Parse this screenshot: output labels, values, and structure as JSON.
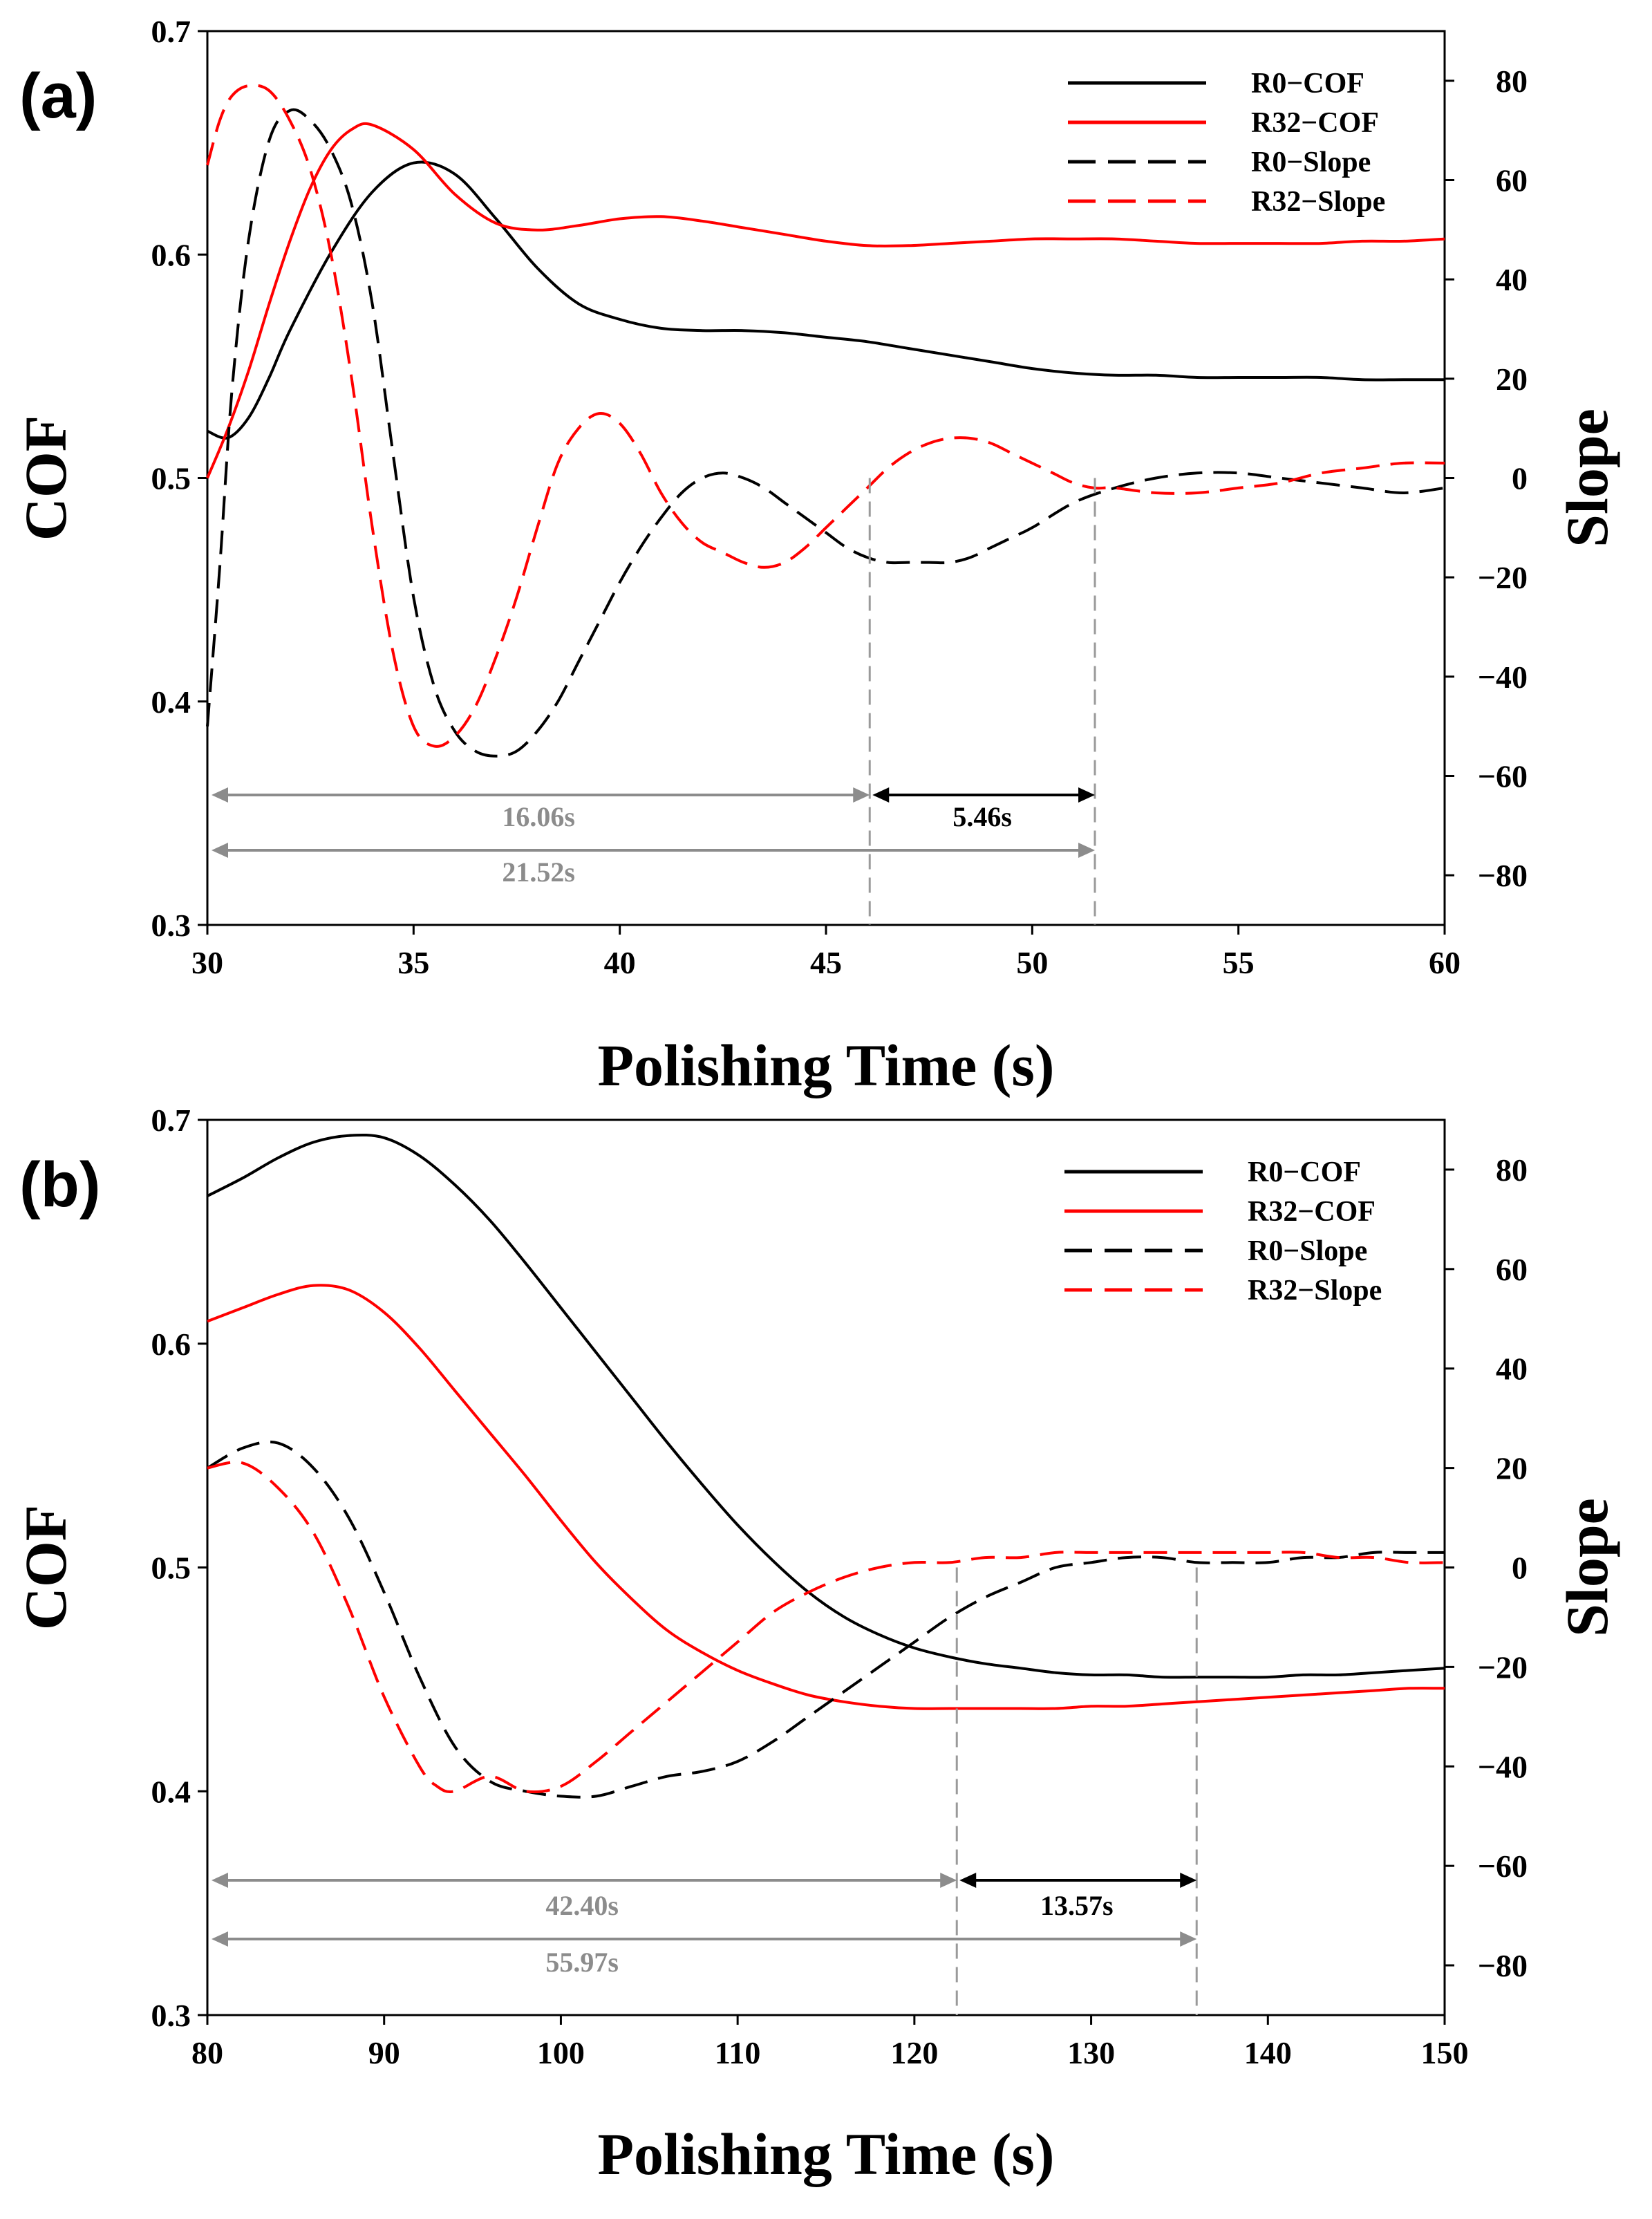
{
  "chart_data": [
    {
      "type": "line",
      "panel_label": "(a)",
      "xlabel": "Polishing Time (s)",
      "ylabel": "COF",
      "y2label": "Slope",
      "xlim": [
        30,
        60
      ],
      "ylim": [
        0.3,
        0.7
      ],
      "y2lim": [
        -90,
        90
      ],
      "xticks": [
        "30",
        "35",
        "40",
        "45",
        "50",
        "55",
        "60"
      ],
      "yticks": [
        "0.3",
        "0.4",
        "0.5",
        "0.6",
        "0.7"
      ],
      "y2ticks": [
        "-80",
        "-60",
        "-40",
        "-20",
        "0",
        "20",
        "40",
        "60",
        "80"
      ],
      "legend": [
        "R0−COF",
        "R32−COF",
        "R0−Slope",
        "R32−Slope"
      ],
      "legend_position": "top-right",
      "colors": {
        "R0": "#000000",
        "R32": "#ff0000",
        "annotation": "#8c8c8c"
      },
      "series": [
        {
          "name": "R0−COF",
          "axis": "left",
          "style": "solid",
          "color": "#000000",
          "x": [
            30,
            30.5,
            31,
            31.5,
            32,
            33,
            34,
            35,
            36,
            37,
            38,
            39,
            40,
            41,
            42,
            43,
            44,
            45,
            46,
            47,
            48,
            49,
            50,
            51,
            52,
            53,
            54,
            55,
            56,
            57,
            58,
            59,
            60
          ],
          "y": [
            0.521,
            0.518,
            0.527,
            0.545,
            0.566,
            0.601,
            0.628,
            0.641,
            0.636,
            0.616,
            0.594,
            0.578,
            0.571,
            0.567,
            0.566,
            0.566,
            0.565,
            0.563,
            0.561,
            0.558,
            0.555,
            0.552,
            0.549,
            0.547,
            0.546,
            0.546,
            0.545,
            0.545,
            0.545,
            0.545,
            0.544,
            0.544,
            0.544
          ]
        },
        {
          "name": "R32−COF",
          "axis": "left",
          "style": "solid",
          "color": "#ff0000",
          "x": [
            30,
            30.5,
            31,
            31.5,
            32,
            32.5,
            33,
            33.5,
            34,
            35,
            36,
            37,
            38,
            39,
            40,
            41,
            42,
            43,
            44,
            45,
            46,
            47,
            48,
            49,
            50,
            51,
            52,
            53,
            54,
            55,
            56,
            57,
            58,
            59,
            60
          ],
          "y": [
            0.5,
            0.522,
            0.548,
            0.578,
            0.606,
            0.63,
            0.647,
            0.656,
            0.658,
            0.647,
            0.627,
            0.614,
            0.611,
            0.613,
            0.616,
            0.617,
            0.615,
            0.612,
            0.609,
            0.606,
            0.604,
            0.604,
            0.605,
            0.606,
            0.607,
            0.607,
            0.607,
            0.606,
            0.605,
            0.605,
            0.605,
            0.605,
            0.606,
            0.606,
            0.607
          ]
        },
        {
          "name": "R0−Slope",
          "axis": "right",
          "style": "dashed",
          "color": "#000000",
          "x": [
            30,
            30.3,
            30.6,
            31,
            31.5,
            32,
            32.5,
            33,
            33.5,
            34,
            34.5,
            35,
            35.5,
            36,
            36.5,
            37,
            37.5,
            38,
            38.5,
            39,
            39.5,
            40,
            40.5,
            41,
            41.5,
            42,
            42.5,
            43,
            43.5,
            44,
            44.5,
            45,
            45.5,
            46,
            46.5,
            47,
            47.5,
            48,
            48.5,
            49,
            49.5,
            50,
            51,
            52,
            53,
            54,
            55,
            56,
            57,
            58,
            59,
            60
          ],
          "y": [
            -50,
            -18,
            18,
            48,
            68,
            74,
            72,
            66,
            55,
            35,
            5,
            -24,
            -42,
            -51,
            -55,
            -56,
            -55,
            -51,
            -45,
            -37,
            -29,
            -21,
            -14,
            -8,
            -3,
            0,
            1,
            0,
            -2,
            -5,
            -8,
            -11,
            -14,
            -16,
            -17,
            -17,
            -17,
            -17,
            -16,
            -14,
            -12,
            -10,
            -5,
            -2,
            0,
            1,
            1,
            0,
            -1,
            -2,
            -3,
            -2
          ]
        },
        {
          "name": "R32−Slope",
          "axis": "right",
          "style": "dashed",
          "color": "#ff0000",
          "x": [
            30,
            30.3,
            30.6,
            31,
            31.5,
            32,
            32.5,
            33,
            33.5,
            34,
            34.5,
            35,
            35.5,
            36,
            36.5,
            37,
            37.5,
            38,
            38.5,
            39,
            39.5,
            40,
            40.5,
            41,
            41.5,
            42,
            42.5,
            43,
            43.5,
            44,
            44.5,
            45,
            45.5,
            46,
            46.5,
            47,
            47.5,
            48,
            48.5,
            49,
            49.5,
            50,
            50.5,
            51,
            51.5,
            52,
            53,
            54,
            55,
            56,
            57,
            58,
            59,
            60
          ],
          "y": [
            63,
            72,
            77,
            79,
            78,
            72,
            62,
            45,
            20,
            -10,
            -35,
            -50,
            -54,
            -52,
            -46,
            -36,
            -24,
            -10,
            3,
            10,
            13,
            11,
            5,
            -3,
            -9,
            -13,
            -15,
            -17,
            -18,
            -17,
            -14,
            -10,
            -6,
            -2,
            2,
            5,
            7,
            8,
            8,
            7,
            5,
            3,
            1,
            -1,
            -2,
            -2,
            -3,
            -3,
            -2,
            -1,
            1,
            2,
            3,
            3
          ]
        }
      ],
      "annotations": [
        {
          "text": "16.06s",
          "from": 30,
          "to": 46.06,
          "color": "gray"
        },
        {
          "text": "5.46s",
          "from": 46.06,
          "to": 51.52,
          "color": "black"
        },
        {
          "text": "21.52s",
          "from": 30,
          "to": 51.52,
          "color": "gray"
        }
      ],
      "vlines": [
        46.06,
        51.52
      ]
    },
    {
      "type": "line",
      "panel_label": "(b)",
      "xlabel": "Polishing Time (s)",
      "ylabel": "COF",
      "y2label": "Slope",
      "xlim": [
        80,
        150
      ],
      "ylim": [
        0.3,
        0.7
      ],
      "y2lim": [
        -90,
        90
      ],
      "xticks": [
        "80",
        "90",
        "100",
        "110",
        "120",
        "130",
        "140",
        "150"
      ],
      "yticks": [
        "0.3",
        "0.4",
        "0.5",
        "0.6",
        "0.7"
      ],
      "y2ticks": [
        "-80",
        "-60",
        "-40",
        "-20",
        "0",
        "20",
        "40",
        "60",
        "80"
      ],
      "legend": [
        "R0−COF",
        "R32−COF",
        "R0−Slope",
        "R32−Slope"
      ],
      "legend_position": "top-right",
      "colors": {
        "R0": "#000000",
        "R32": "#ff0000",
        "annotation": "#8c8c8c"
      },
      "series": [
        {
          "name": "R0−COF",
          "axis": "left",
          "style": "solid",
          "color": "#000000",
          "x": [
            80,
            82,
            84,
            86,
            88,
            90,
            92,
            94,
            96,
            98,
            100,
            102,
            104,
            106,
            108,
            110,
            112,
            114,
            116,
            118,
            120,
            122,
            124,
            126,
            128,
            130,
            132,
            134,
            136,
            138,
            140,
            142,
            144,
            146,
            148,
            150
          ],
          "y": [
            0.666,
            0.674,
            0.683,
            0.69,
            0.693,
            0.692,
            0.684,
            0.671,
            0.655,
            0.636,
            0.616,
            0.596,
            0.576,
            0.556,
            0.537,
            0.519,
            0.503,
            0.489,
            0.478,
            0.47,
            0.464,
            0.46,
            0.457,
            0.455,
            0.453,
            0.452,
            0.452,
            0.451,
            0.451,
            0.451,
            0.451,
            0.452,
            0.452,
            0.453,
            0.454,
            0.455
          ]
        },
        {
          "name": "R32−COF",
          "axis": "left",
          "style": "solid",
          "color": "#ff0000",
          "x": [
            80,
            82,
            84,
            86,
            88,
            90,
            92,
            94,
            96,
            98,
            100,
            102,
            104,
            106,
            108,
            110,
            112,
            114,
            116,
            118,
            120,
            122,
            124,
            126,
            128,
            130,
            132,
            134,
            136,
            138,
            140,
            142,
            144,
            146,
            148,
            150
          ],
          "y": [
            0.61,
            0.616,
            0.622,
            0.626,
            0.624,
            0.614,
            0.598,
            0.579,
            0.56,
            0.541,
            0.521,
            0.502,
            0.486,
            0.472,
            0.462,
            0.454,
            0.448,
            0.443,
            0.44,
            0.438,
            0.437,
            0.437,
            0.437,
            0.437,
            0.437,
            0.438,
            0.438,
            0.439,
            0.44,
            0.441,
            0.442,
            0.443,
            0.444,
            0.445,
            0.446,
            0.446
          ]
        },
        {
          "name": "R0−Slope",
          "axis": "right",
          "style": "dashed",
          "color": "#000000",
          "x": [
            80,
            82,
            84,
            86,
            88,
            90,
            92,
            94,
            96,
            98,
            100,
            102,
            104,
            106,
            108,
            110,
            112,
            114,
            116,
            118,
            120,
            122,
            124,
            126,
            128,
            130,
            132,
            134,
            136,
            138,
            140,
            142,
            144,
            146,
            148,
            150
          ],
          "y": [
            20,
            24,
            25,
            20,
            10,
            -5,
            -22,
            -36,
            -43,
            -45,
            -46,
            -46,
            -44,
            -42,
            -41,
            -39,
            -35,
            -30,
            -25,
            -20,
            -15,
            -10,
            -6,
            -3,
            0,
            1,
            2,
            2,
            1,
            1,
            1,
            2,
            2,
            3,
            3,
            3
          ]
        },
        {
          "name": "R32−Slope",
          "axis": "right",
          "style": "dashed",
          "color": "#ff0000",
          "x": [
            80,
            82,
            84,
            86,
            88,
            90,
            92,
            93,
            94,
            96,
            98,
            100,
            102,
            104,
            106,
            108,
            110,
            112,
            114,
            116,
            118,
            120,
            122,
            124,
            126,
            128,
            130,
            132,
            134,
            136,
            138,
            140,
            142,
            144,
            146,
            148,
            150
          ],
          "y": [
            20,
            21,
            16,
            7,
            -8,
            -26,
            -40,
            -44,
            -45,
            -42,
            -45,
            -44,
            -39,
            -33,
            -27,
            -21,
            -15,
            -9,
            -5,
            -2,
            0,
            1,
            1,
            2,
            2,
            3,
            3,
            3,
            3,
            3,
            3,
            3,
            3,
            2,
            2,
            1,
            1
          ]
        }
      ],
      "annotations": [
        {
          "text": "42.40s",
          "from": 80,
          "to": 122.4,
          "color": "gray"
        },
        {
          "text": "13.57s",
          "from": 122.4,
          "to": 135.97,
          "color": "black"
        },
        {
          "text": "55.97s",
          "from": 80,
          "to": 135.97,
          "color": "gray"
        }
      ],
      "vlines": [
        122.4,
        135.97
      ]
    }
  ]
}
